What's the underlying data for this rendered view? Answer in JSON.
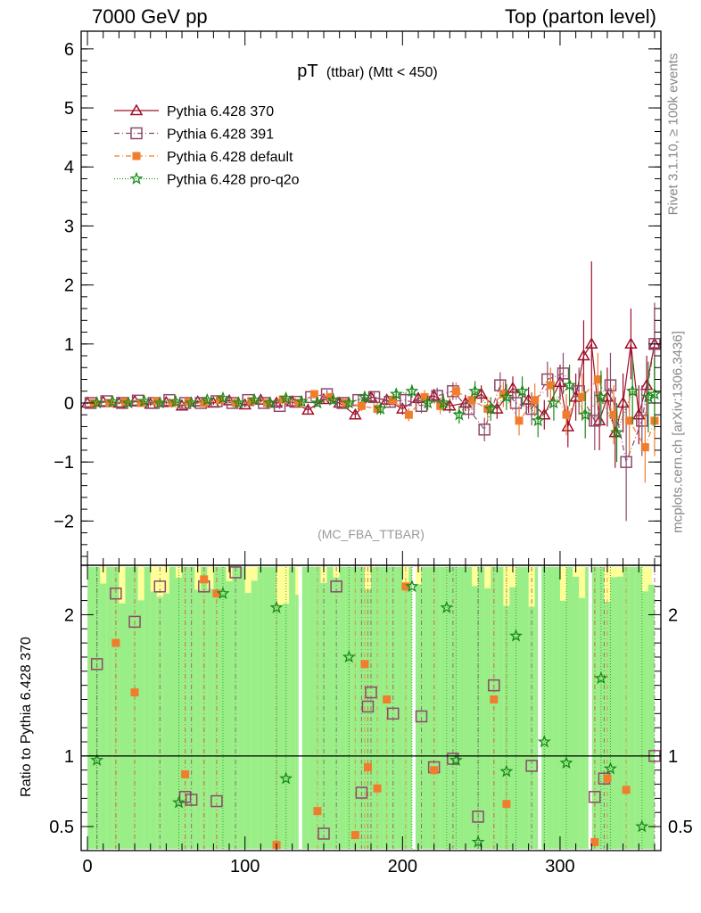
{
  "header": {
    "left": "7000 GeV pp",
    "right": "Top (parton level)"
  },
  "side_labels": {
    "rivet": "Rivet 3.1.10, ≥ 100k events",
    "mcplots": "mcplots.cern.ch [arXiv:1306.3436]"
  },
  "chart_data": [
    {
      "type": "scatter",
      "title": "pT (ttbar) (Mtt < 450)",
      "title_main": "pT",
      "title_sub": "(ttbar) (Mtt < 450)",
      "watermark": "(MC_FBA_TTBAR)",
      "xlim": [
        -4,
        364
      ],
      "ylim": [
        -2.75,
        6.3
      ],
      "x_ticks": [
        0,
        100,
        200,
        300
      ],
      "y_ticks": [
        -2,
        -1,
        0,
        1,
        2,
        3,
        4,
        5,
        6
      ],
      "y_tick_labels": [
        "−2",
        "−1",
        "0",
        "1",
        "2",
        "3",
        "4",
        "5",
        "6"
      ],
      "legend_position": "top-left",
      "series": [
        {
          "name": "Pythia 6.428 370",
          "color": "#a0102a",
          "marker": "open-triangle",
          "line": "solid",
          "x": [
            0,
            10,
            20,
            30,
            40,
            50,
            60,
            70,
            80,
            90,
            100,
            110,
            120,
            130,
            140,
            150,
            160,
            170,
            180,
            190,
            200,
            210,
            220,
            230,
            240,
            250,
            260,
            270,
            280,
            290,
            300,
            305,
            310,
            315,
            320,
            325,
            330,
            335,
            340,
            345,
            350,
            355,
            360
          ],
          "y": [
            0.0,
            0.02,
            0.0,
            0.03,
            -0.02,
            0.01,
            -0.05,
            0.02,
            0.0,
            0.04,
            -0.03,
            0.05,
            0.0,
            0.02,
            -0.12,
            0.06,
            0.0,
            -0.2,
            0.1,
            0.05,
            -0.1,
            0.08,
            0.12,
            -0.05,
            0.0,
            0.15,
            -0.1,
            0.25,
            0.05,
            -0.2,
            0.35,
            -0.4,
            0.1,
            0.8,
            1.0,
            -0.3,
            0.1,
            -0.5,
            0.0,
            1.0,
            -0.2,
            0.3,
            1.0
          ],
          "err": [
            0.02,
            0.02,
            0.02,
            0.02,
            0.03,
            0.03,
            0.03,
            0.03,
            0.03,
            0.04,
            0.04,
            0.04,
            0.05,
            0.05,
            0.06,
            0.06,
            0.07,
            0.08,
            0.08,
            0.09,
            0.1,
            0.1,
            0.12,
            0.12,
            0.14,
            0.15,
            0.17,
            0.2,
            0.22,
            0.25,
            0.3,
            0.35,
            0.4,
            0.6,
            1.4,
            0.5,
            0.5,
            0.6,
            0.5,
            0.6,
            0.5,
            0.5,
            0.6
          ]
        },
        {
          "name": "Pythia 6.428 391",
          "color": "#8b4a6b",
          "marker": "open-square",
          "line": "dash-dot",
          "x": [
            2,
            12,
            22,
            32,
            42,
            52,
            62,
            72,
            82,
            92,
            102,
            112,
            122,
            132,
            142,
            152,
            162,
            172,
            182,
            192,
            202,
            212,
            222,
            232,
            242,
            252,
            262,
            272,
            282,
            292,
            302,
            312,
            322,
            332,
            342,
            352,
            360
          ],
          "y": [
            0.0,
            0.03,
            0.0,
            0.04,
            0.0,
            0.05,
            0.0,
            0.0,
            0.03,
            0.0,
            0.05,
            0.0,
            -0.05,
            0.02,
            0.1,
            0.15,
            0.0,
            0.05,
            0.1,
            0.02,
            0.05,
            -0.05,
            0.12,
            0.2,
            -0.1,
            -0.45,
            0.3,
            0.0,
            -0.1,
            0.4,
            0.5,
            0.2,
            -0.3,
            0.3,
            -1.0,
            -0.3,
            1.0
          ],
          "err": [
            0.02,
            0.02,
            0.02,
            0.03,
            0.03,
            0.03,
            0.03,
            0.04,
            0.04,
            0.04,
            0.05,
            0.05,
            0.05,
            0.06,
            0.07,
            0.07,
            0.08,
            0.09,
            0.1,
            0.1,
            0.12,
            0.12,
            0.14,
            0.15,
            0.17,
            0.2,
            0.22,
            0.25,
            0.28,
            0.3,
            0.35,
            0.4,
            0.5,
            0.55,
            1.0,
            0.6,
            0.7
          ]
        },
        {
          "name": "Pythia 6.428 default",
          "color": "#f07d2e",
          "marker": "filled-square",
          "line": "dash-dot",
          "x": [
            4,
            14,
            24,
            34,
            44,
            54,
            64,
            74,
            84,
            94,
            104,
            114,
            124,
            134,
            144,
            154,
            164,
            174,
            184,
            194,
            204,
            214,
            224,
            234,
            244,
            254,
            264,
            274,
            284,
            294,
            304,
            314,
            324,
            334,
            344,
            354,
            360
          ],
          "y": [
            0.0,
            0.0,
            0.02,
            0.0,
            0.03,
            0.0,
            0.02,
            0.0,
            0.05,
            0.0,
            0.03,
            0.0,
            0.06,
            0.0,
            0.15,
            0.1,
            0.0,
            -0.05,
            -0.1,
            0.05,
            -0.2,
            0.1,
            -0.05,
            0.2,
            0.05,
            -0.1,
            0.15,
            -0.3,
            0.05,
            0.3,
            -0.2,
            0.1,
            0.4,
            -0.2,
            -0.3,
            -0.75,
            -0.3
          ],
          "err": [
            0.02,
            0.02,
            0.02,
            0.02,
            0.03,
            0.03,
            0.03,
            0.03,
            0.04,
            0.04,
            0.04,
            0.05,
            0.05,
            0.06,
            0.06,
            0.07,
            0.08,
            0.09,
            0.1,
            0.1,
            0.11,
            0.12,
            0.14,
            0.15,
            0.17,
            0.2,
            0.22,
            0.25,
            0.28,
            0.3,
            0.35,
            0.4,
            0.45,
            0.5,
            0.55,
            0.6,
            0.6
          ]
        },
        {
          "name": "Pythia 6.428 pro-q2o",
          "color": "#1a8a1a",
          "marker": "star",
          "line": "dotted",
          "x": [
            6,
            16,
            26,
            36,
            46,
            56,
            66,
            76,
            86,
            96,
            106,
            116,
            126,
            136,
            146,
            156,
            166,
            176,
            186,
            196,
            206,
            216,
            226,
            236,
            246,
            256,
            266,
            276,
            286,
            296,
            306,
            316,
            326,
            336,
            346,
            356,
            360
          ],
          "y": [
            0.0,
            0.02,
            0.0,
            0.03,
            0.0,
            0.02,
            0.0,
            0.05,
            0.08,
            0.0,
            0.05,
            0.0,
            0.08,
            0.02,
            0.0,
            0.05,
            0.0,
            0.1,
            -0.1,
            0.15,
            0.2,
            0.0,
            0.0,
            -0.2,
            0.2,
            -0.1,
            0.1,
            0.2,
            -0.3,
            0.0,
            0.3,
            -0.2,
            0.1,
            -0.5,
            0.2,
            0.1,
            0.15
          ],
          "err": [
            0.02,
            0.02,
            0.02,
            0.02,
            0.03,
            0.03,
            0.03,
            0.03,
            0.04,
            0.04,
            0.04,
            0.05,
            0.05,
            0.06,
            0.06,
            0.07,
            0.08,
            0.09,
            0.1,
            0.1,
            0.11,
            0.12,
            0.14,
            0.15,
            0.17,
            0.2,
            0.22,
            0.25,
            0.28,
            0.3,
            0.35,
            0.4,
            0.45,
            0.5,
            0.55,
            0.6,
            0.6
          ]
        }
      ]
    },
    {
      "type": "scatter",
      "ylabel": "Ratio to Pythia 6.428 370",
      "xlim": [
        -4,
        364
      ],
      "ylim": [
        0.33,
        2.35
      ],
      "x_ticks": [
        0,
        100,
        200,
        300
      ],
      "y_ticks": [
        0.5,
        1,
        2
      ],
      "y_tick_labels": [
        "0.5",
        "1",
        "2"
      ],
      "reference_line": 1,
      "series": [
        {
          "name": "Pythia 6.428 391",
          "color": "#8b4a6b",
          "marker": "open-square",
          "x": [
            6,
            18,
            30,
            46,
            62,
            66,
            74,
            82,
            94,
            150,
            158,
            174,
            178,
            180,
            194,
            212,
            220,
            232,
            248,
            258,
            282,
            322,
            328,
            360
          ],
          "y": [
            1.65,
            2.15,
            1.95,
            2.2,
            0.71,
            0.69,
            2.2,
            0.68,
            2.3,
            0.45,
            2.2,
            0.74,
            1.35,
            1.45,
            1.3,
            1.28,
            0.92,
            0.98,
            0.57,
            1.5,
            0.93,
            0.71,
            0.84,
            1.0
          ]
        },
        {
          "name": "Pythia 6.428 default",
          "color": "#f07d2e",
          "marker": "filled-square",
          "x": [
            18,
            30,
            62,
            74,
            82,
            120,
            146,
            170,
            176,
            178,
            184,
            190,
            202,
            220,
            258,
            266,
            322,
            330,
            342
          ],
          "y": [
            1.8,
            1.45,
            0.87,
            2.25,
            2.15,
            0.37,
            0.61,
            0.44,
            1.65,
            0.92,
            0.77,
            1.4,
            2.2,
            0.9,
            1.4,
            0.66,
            0.39,
            0.84,
            0.76
          ]
        },
        {
          "name": "Pythia 6.428 pro-q2o",
          "color": "#1a8a1a",
          "marker": "star",
          "x": [
            6,
            58,
            86,
            120,
            126,
            166,
            206,
            228,
            234,
            248,
            266,
            272,
            290,
            304,
            326,
            332,
            352
          ],
          "y": [
            0.97,
            0.67,
            2.15,
            2.05,
            0.84,
            1.7,
            2.2,
            2.05,
            0.97,
            0.39,
            0.89,
            1.85,
            1.1,
            0.95,
            1.55,
            0.91,
            0.5
          ]
        }
      ]
    }
  ]
}
